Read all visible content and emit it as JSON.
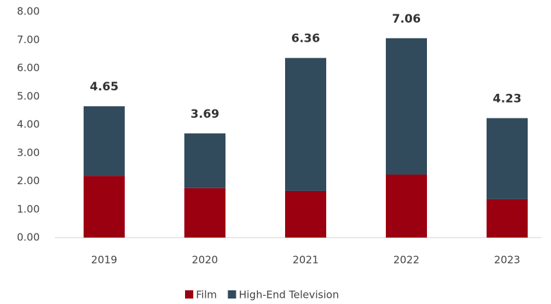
{
  "chart_data": {
    "type": "stacked_bar",
    "categories": [
      "2019",
      "2020",
      "2021",
      "2022",
      "2023"
    ],
    "series": [
      {
        "name": "Film",
        "color": "#9b0010",
        "values": [
          2.18,
          1.75,
          1.65,
          2.23,
          1.36
        ]
      },
      {
        "name": "High-End Television",
        "color": "#324b5c",
        "values": [
          2.47,
          1.94,
          4.71,
          4.83,
          2.87
        ]
      }
    ],
    "totals": [
      4.65,
      3.69,
      6.36,
      7.06,
      4.23
    ],
    "ylim": [
      0,
      8
    ],
    "yticks": [
      {
        "value": 0,
        "label": "0.00"
      },
      {
        "value": 1,
        "label": "1.00"
      },
      {
        "value": 2,
        "label": "2.00"
      },
      {
        "value": 3,
        "label": "3.00"
      },
      {
        "value": 4,
        "label": "4.00"
      },
      {
        "value": 5,
        "label": "5.00"
      },
      {
        "value": 6,
        "label": "6.00"
      },
      {
        "value": 7,
        "label": "7.00"
      },
      {
        "value": 8,
        "label": "8.00"
      }
    ],
    "grid": false,
    "legend": "bottom"
  }
}
